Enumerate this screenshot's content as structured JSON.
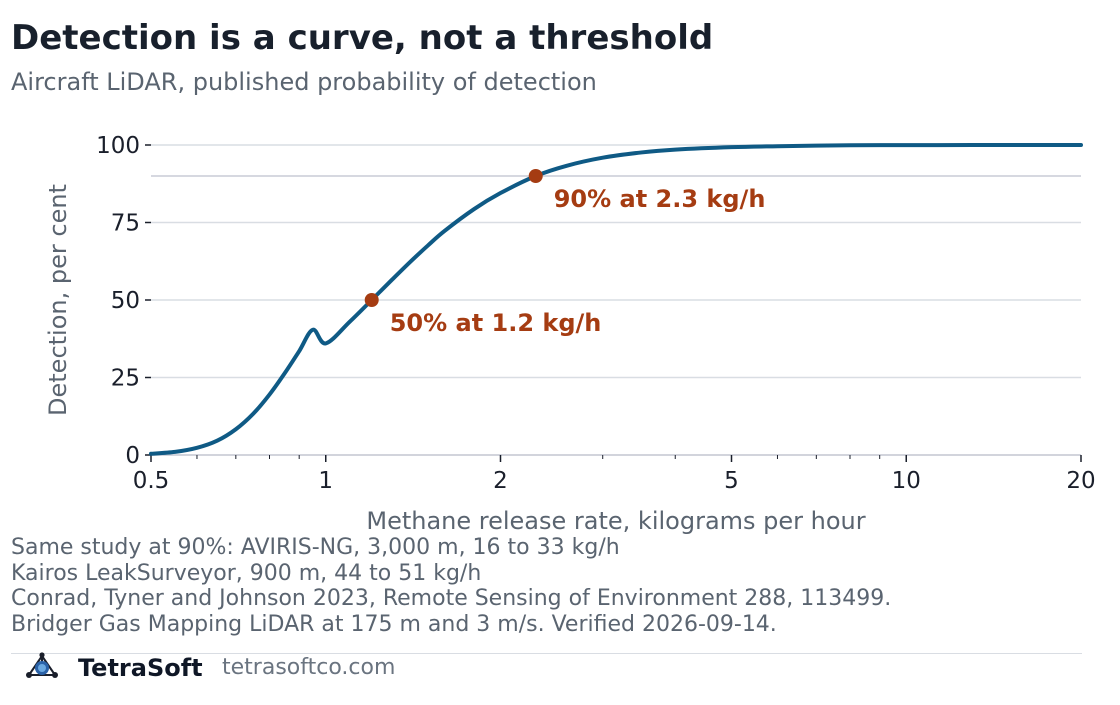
{
  "header": {
    "title": "Detection is a curve, not a threshold",
    "subtitle": "Aircraft LiDAR, published probability of detection"
  },
  "chart_data": {
    "type": "line",
    "title": "Detection is a curve, not a threshold",
    "subtitle": "Aircraft LiDAR, published probability of detection",
    "xlabel": "Methane release rate, kilograms per hour",
    "ylabel": "Detection, per cent",
    "x_scale": "log",
    "xlim": [
      0.5,
      20
    ],
    "ylim": [
      0,
      100
    ],
    "x_ticks": [
      {
        "value": 0.5,
        "label": "0.5"
      },
      {
        "value": 1,
        "label": "1"
      },
      {
        "value": 2,
        "label": "2"
      },
      {
        "value": 5,
        "label": "5"
      },
      {
        "value": 10,
        "label": "10"
      },
      {
        "value": 20,
        "label": "20"
      }
    ],
    "y_ticks": [
      {
        "value": 0,
        "label": "0"
      },
      {
        "value": 25,
        "label": "25"
      },
      {
        "value": 50,
        "label": "50"
      },
      {
        "value": 75,
        "label": "75"
      },
      {
        "value": 100,
        "label": "100"
      }
    ],
    "grid": "horizontal",
    "reference_lines": [
      {
        "y": 90
      }
    ],
    "series": [
      {
        "color": "#0f5a85",
        "x": [
          0.5,
          0.55,
          0.6,
          0.65,
          0.7,
          0.75,
          0.8,
          0.85,
          0.9,
          0.95,
          1.0,
          1.1,
          1.2,
          1.3,
          1.4,
          1.5,
          1.6,
          1.8,
          2.0,
          2.3,
          2.6,
          3.0,
          3.5,
          4.0,
          5.0,
          6.0,
          8.0,
          10.0,
          13.0,
          16.0,
          20.0
        ],
        "y": [
          0.4,
          1.0,
          2.3,
          4.6,
          8.3,
          13.3,
          19.5,
          26.4,
          33.5,
          40.4,
          36.0,
          43.0,
          50.0,
          56.5,
          62.4,
          67.6,
          72.2,
          79.3,
          84.5,
          90.0,
          93.3,
          95.9,
          97.6,
          98.5,
          99.3,
          99.6,
          99.9,
          99.95,
          100.0,
          100.0,
          100.0
        ]
      }
    ],
    "points": [
      {
        "x": 1.2,
        "y": 50,
        "label": "50% at 1.2 kg/h",
        "color": "#a53c12"
      },
      {
        "x": 2.3,
        "y": 90,
        "label": "90% at 2.3 kg/h",
        "color": "#a53c12"
      }
    ]
  },
  "notes": [
    "Same study at 90%: AVIRIS-NG, 3,000 m, 16 to 33 kg/h",
    "Kairos LeakSurveyor, 900 m, 44 to 51 kg/h",
    "Conrad, Tyner and Johnson 2023, Remote Sensing of Environment 288, 113499.",
    "Bridger Gas Mapping LiDAR at 175 m and 3 m/s. Verified 2026-09-14."
  ],
  "footer": {
    "brand": "TetraSoft",
    "website": "tetrasoftco.com",
    "logo_icon": "tetrasoft-logo-icon"
  }
}
